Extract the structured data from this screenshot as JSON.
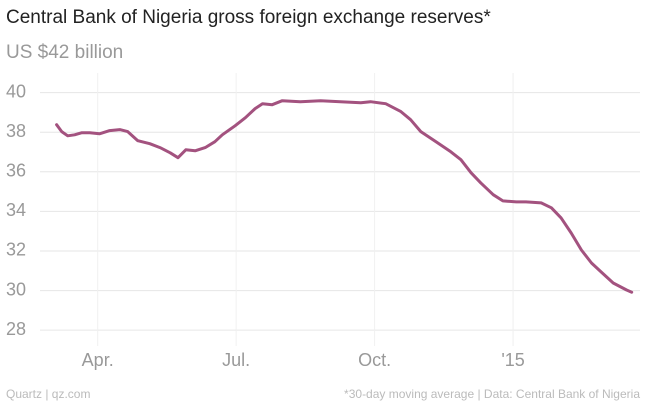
{
  "chart_data": {
    "type": "line",
    "title": "Central Bank of Nigeria gross foreign exchange reserves*",
    "subtitle": "US $42 billion",
    "source_left": "Quartz | qz.com",
    "source_right": "*30-day moving average | Data: Central Bank of Nigeria",
    "x": [
      2.11,
      2.22,
      2.35,
      2.5,
      2.65,
      2.83,
      3.04,
      3.26,
      3.48,
      3.65,
      3.87,
      4.13,
      4.35,
      4.57,
      4.74,
      4.91,
      5.11,
      5.33,
      5.54,
      5.7,
      5.98,
      6.2,
      6.41,
      6.57,
      6.78,
      7.0,
      7.39,
      7.83,
      8.26,
      8.7,
      8.91,
      9.24,
      9.57,
      9.78,
      10.0,
      10.33,
      10.65,
      10.87,
      11.09,
      11.3,
      11.57,
      11.78,
      12.07,
      12.28,
      12.61,
      12.83,
      13.04,
      13.26,
      13.48,
      13.7,
      13.91,
      14.17,
      14.46,
      14.57
    ],
    "series": [
      {
        "name": "Reserves",
        "color": "#a3527f",
        "values": [
          38.38,
          38.03,
          37.82,
          37.87,
          37.97,
          37.97,
          37.92,
          38.08,
          38.13,
          38.03,
          37.57,
          37.42,
          37.22,
          36.96,
          36.71,
          37.11,
          37.06,
          37.22,
          37.52,
          37.87,
          38.33,
          38.73,
          39.19,
          39.44,
          39.39,
          39.59,
          39.54,
          39.59,
          39.54,
          39.49,
          39.54,
          39.44,
          39.04,
          38.63,
          38.03,
          37.52,
          37.01,
          36.61,
          35.95,
          35.44,
          34.84,
          34.53,
          34.48,
          34.48,
          34.43,
          34.18,
          33.67,
          32.91,
          32.05,
          31.39,
          30.94,
          30.38,
          30.03,
          29.92
        ]
      }
    ],
    "xlim": [
      1.75,
      14.75
    ],
    "xticks": [
      {
        "value": 3,
        "label": "Apr."
      },
      {
        "value": 6,
        "label": "Jul."
      },
      {
        "value": 9,
        "label": "Oct."
      },
      {
        "value": 12,
        "label": "'15"
      }
    ],
    "ylim": [
      27.2,
      42
    ],
    "yticks": [
      28,
      30,
      32,
      34,
      36,
      38,
      40
    ],
    "grid": true
  }
}
